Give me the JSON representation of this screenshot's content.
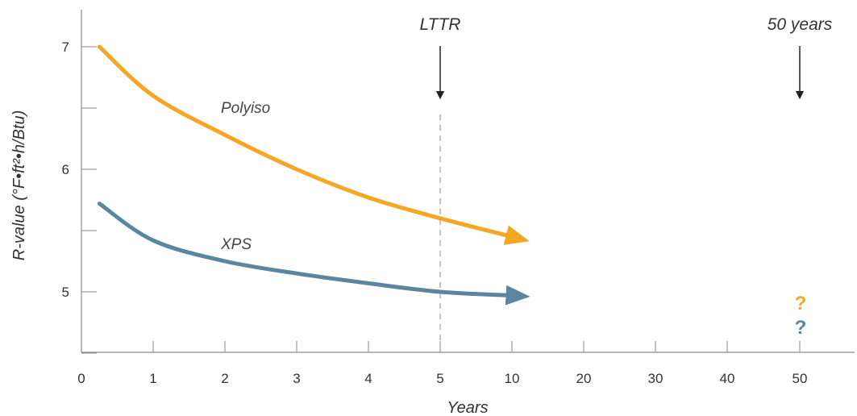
{
  "chart_data": {
    "type": "line",
    "xlabel": "Years",
    "ylabel": "R-value (°F•ft²•h/Btu)",
    "x_tick_labels": [
      "0",
      "1",
      "2",
      "3",
      "4",
      "5",
      "10",
      "20",
      "30",
      "40",
      "50"
    ],
    "y_ticks": [
      5,
      6,
      7
    ],
    "y_tick_labels": [
      "5",
      "6",
      "7"
    ],
    "ylim": [
      4.5,
      7.3
    ],
    "series": [
      {
        "name": "Polyiso",
        "color": "#f5a623",
        "x": [
          0.25,
          1,
          2,
          3,
          4,
          5,
          10
        ],
        "values": [
          7.0,
          6.6,
          6.28,
          6.0,
          5.77,
          5.6,
          5.45
        ]
      },
      {
        "name": "XPS",
        "color": "#5a869f",
        "x": [
          0.25,
          1,
          2,
          3,
          4,
          5,
          10
        ],
        "values": [
          5.72,
          5.42,
          5.25,
          5.15,
          5.07,
          5.0,
          4.97
        ]
      }
    ],
    "annotations": [
      {
        "text": "LTTR",
        "x": 5,
        "dashed_line": true
      },
      {
        "text": "50 years",
        "x": 50,
        "dashed_line": false
      }
    ],
    "unknown_markers": [
      {
        "text": "?",
        "x": 50,
        "color": "#f5a623"
      },
      {
        "text": "?",
        "x": 50,
        "color": "#5a869f"
      }
    ],
    "grid": false,
    "legend": "none (series labeled inline)"
  }
}
